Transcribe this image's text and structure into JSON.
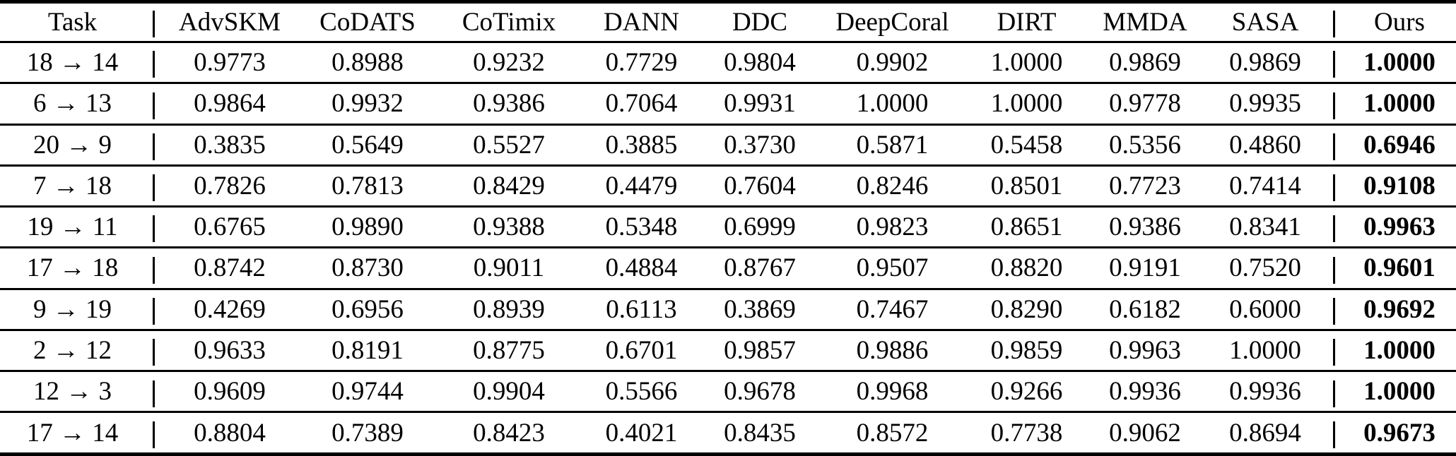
{
  "table": {
    "colors": {
      "text": "#000000",
      "background": "#ffffff",
      "rules": "#000000"
    },
    "header": {
      "task": "Task",
      "methods": [
        "AdvSKM",
        "CoDATS",
        "CoTimix",
        "DANN",
        "DDC",
        "DeepCoral",
        "DIRT",
        "MMDA",
        "SASA"
      ],
      "ours": "Ours"
    },
    "rows": [
      {
        "task": "18 → 14",
        "values": [
          "0.9773",
          "0.8988",
          "0.9232",
          "0.7729",
          "0.9804",
          "0.9902",
          "1.0000",
          "0.9869",
          "0.9869"
        ],
        "ours": "1.0000"
      },
      {
        "task": "6 → 13",
        "values": [
          "0.9864",
          "0.9932",
          "0.9386",
          "0.7064",
          "0.9931",
          "1.0000",
          "1.0000",
          "0.9778",
          "0.9935"
        ],
        "ours": "1.0000"
      },
      {
        "task": "20 → 9",
        "values": [
          "0.3835",
          "0.5649",
          "0.5527",
          "0.3885",
          "0.3730",
          "0.5871",
          "0.5458",
          "0.5356",
          "0.4860"
        ],
        "ours": "0.6946"
      },
      {
        "task": "7 → 18",
        "values": [
          "0.7826",
          "0.7813",
          "0.8429",
          "0.4479",
          "0.7604",
          "0.8246",
          "0.8501",
          "0.7723",
          "0.7414"
        ],
        "ours": "0.9108"
      },
      {
        "task": "19 → 11",
        "values": [
          "0.6765",
          "0.9890",
          "0.9388",
          "0.5348",
          "0.6999",
          "0.9823",
          "0.8651",
          "0.9386",
          "0.8341"
        ],
        "ours": "0.9963"
      },
      {
        "task": "17 → 18",
        "values": [
          "0.8742",
          "0.8730",
          "0.9011",
          "0.4884",
          "0.8767",
          "0.9507",
          "0.8820",
          "0.9191",
          "0.7520"
        ],
        "ours": "0.9601"
      },
      {
        "task": "9 → 19",
        "values": [
          "0.4269",
          "0.6956",
          "0.8939",
          "0.6113",
          "0.3869",
          "0.7467",
          "0.8290",
          "0.6182",
          "0.6000"
        ],
        "ours": "0.9692"
      },
      {
        "task": "2 → 12",
        "values": [
          "0.9633",
          "0.8191",
          "0.8775",
          "0.6701",
          "0.9857",
          "0.9886",
          "0.9859",
          "0.9963",
          "1.0000"
        ],
        "ours": "1.0000"
      },
      {
        "task": "12 → 3",
        "values": [
          "0.9609",
          "0.9744",
          "0.9904",
          "0.5566",
          "0.9678",
          "0.9968",
          "0.9266",
          "0.9936",
          "0.9936"
        ],
        "ours": "1.0000"
      },
      {
        "task": "17 → 14",
        "values": [
          "0.8804",
          "0.7389",
          "0.8423",
          "0.4021",
          "0.8435",
          "0.8572",
          "0.7738",
          "0.9062",
          "0.8694"
        ],
        "ours": "0.9673"
      }
    ]
  }
}
